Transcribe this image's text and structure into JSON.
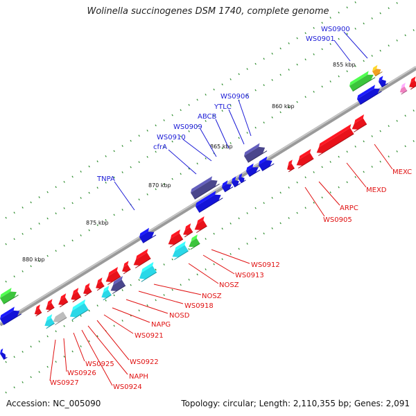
{
  "title": "Wolinella succinogenes DSM 1740, complete genome",
  "accession": "Accession: NC_005090",
  "summary": "Topology: circular; Length: 2,110,355 bp; Genes: 2,091",
  "colors": {
    "backbone": "#808080",
    "forward_label": "#1a1ad6",
    "reverse_label": "#e01010",
    "tick_green": "#2a8a2a",
    "red_gene": "#e8121a",
    "blue_gene": "#1414d8",
    "indigo_gene": "#4a468c",
    "green_gene": "#3cc43c",
    "cyan_gene": "#2ad8e8",
    "orange_gene": "#f0a020",
    "gray_gene": "#bdbdbd"
  },
  "ticks": [
    "855 kbp",
    "860 kbp",
    "865 kbp",
    "870 kbp",
    "875 kbp",
    "880 kbp"
  ],
  "forward_genes": [
    "WS0900",
    "WS0901",
    "WS0906",
    "YTLC",
    "ABCB",
    "WS0909",
    "WS0910",
    "cfrA",
    "TNPA"
  ],
  "reverse_genes": [
    "MEXC",
    "MEXD",
    "ARPC",
    "WS0905",
    "WS0912",
    "WS0913",
    "NOSZ",
    "NOSZ",
    "WS0918",
    "NOSD",
    "NAPG",
    "WS0921",
    "WS0922",
    "NAPH",
    "WS0924",
    "WS0925",
    "WS0926",
    "WS0927"
  ]
}
